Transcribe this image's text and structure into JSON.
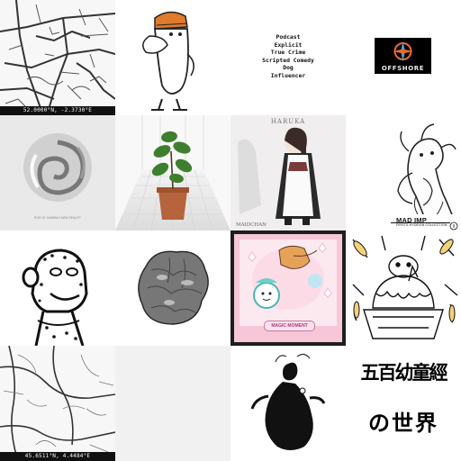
{
  "grid": {
    "tiles": [
      {
        "id": "map-tile-1",
        "coordinate": "52.0000°N, -2.3730°E"
      },
      {
        "id": "podcast-tile",
        "lines": [
          "Podcast",
          "Explicit",
          "True Crime",
          "Scripted Comedy",
          "Dog",
          "Influencer"
        ]
      },
      {
        "id": "offshore-logo-tile",
        "logo_text": "OFFSHORE"
      },
      {
        "id": "swirl-tile",
        "small_caption": "RISE OF GAMMA'S NEW REALITY"
      },
      {
        "id": "plant-tile"
      },
      {
        "id": "haruka-tile",
        "title": "HARUKA",
        "caption": "MAIDCHAN"
      },
      {
        "id": "mad-imp-tile",
        "title": "MAD IMP",
        "subtitle": "FIRSTS-HYDEVIN COLLECTION"
      },
      {
        "id": "ape-tile"
      },
      {
        "id": "rock-tile"
      },
      {
        "id": "magic-moment-tile",
        "label": "MAGIC MOMENT"
      },
      {
        "id": "pudding-tile"
      },
      {
        "id": "map-tile-2",
        "coordinate": "45.6511°N, 4.4484°E"
      },
      {
        "id": "blank-tile"
      },
      {
        "id": "ink-figure-tile"
      },
      {
        "id": "cjk-title-tile",
        "line1": "五百幼童經",
        "line2": "の世界"
      }
    ]
  },
  "colors": {
    "ink": "#111111",
    "paper": "#ffffff",
    "map_road": "#3b3b3b",
    "logo_bg": "#000000",
    "orange_hat": "#e07b2c",
    "pot": "#b5643b",
    "magic_frame": "#1e1e1e",
    "magic_bg": "#f7c6d8"
  }
}
